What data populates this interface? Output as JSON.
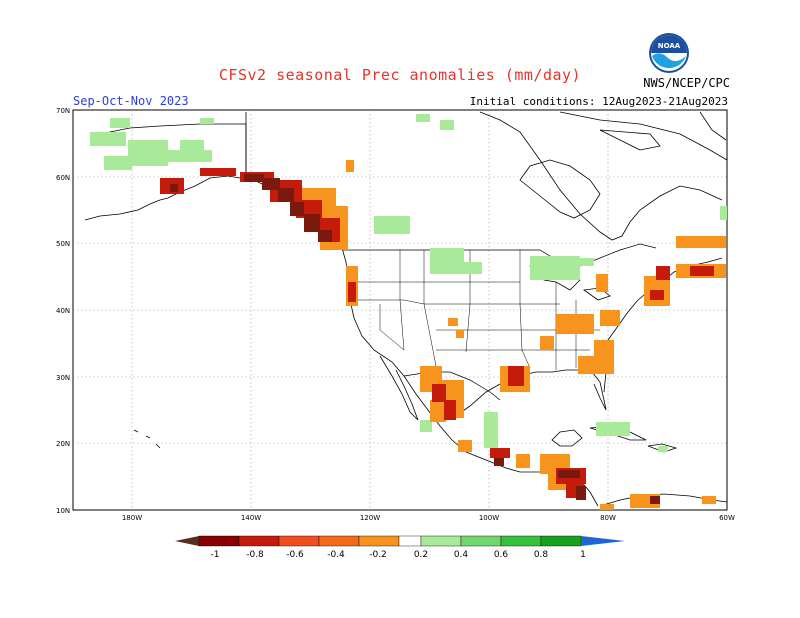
{
  "title": "CFSv2 seasonal Prec anomalies (mm/day)",
  "period": "Sep-Oct-Nov 2023",
  "initial_conditions": "Initial conditions: 12Aug2023-21Aug2023",
  "agency": "NWS/NCEP/CPC",
  "logo_text": "NOAA",
  "lat_labels": [
    "70N",
    "60N",
    "50N",
    "40N",
    "30N",
    "20N",
    "10N"
  ],
  "lon_labels": [
    "180W",
    "140W",
    "120W",
    "100W",
    "80W",
    "60W"
  ],
  "colorbar": {
    "labels": [
      "-1",
      "-0.8",
      "-0.6",
      "-0.4",
      "-0.2",
      "0.2",
      "0.4",
      "0.6",
      "0.8",
      "1"
    ],
    "colors": [
      "#5a2e1e",
      "#8b0000",
      "#c51b0a",
      "#f04e1e",
      "#f7941d",
      "#ffffff",
      "#a8e99a",
      "#6fd86a",
      "#35c23a",
      "#18a01e",
      "#1e66d8"
    ]
  },
  "colors": {
    "title": "#e8322a",
    "period": "#2e3fd6",
    "dry_strong": "#7a1a0f",
    "dry": "#c51b0a",
    "dry_mild": "#f7941d",
    "wet_mild": "#a8e99a"
  }
}
